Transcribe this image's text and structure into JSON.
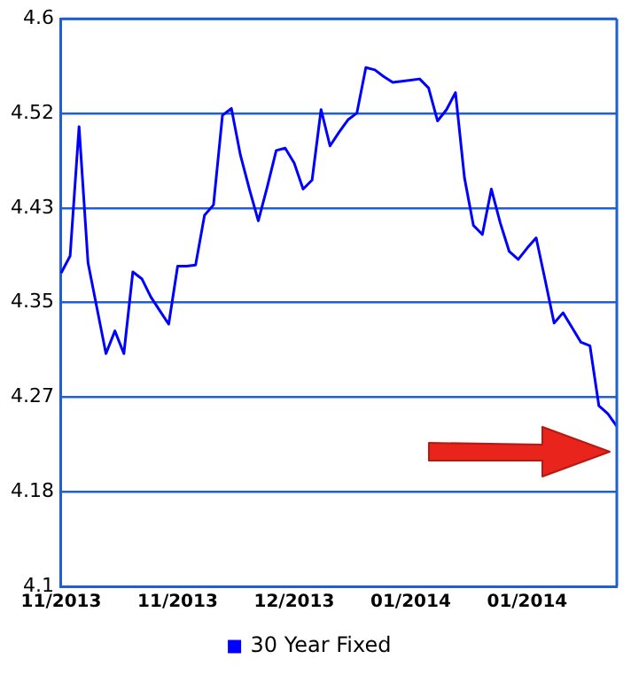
{
  "chart_data": {
    "type": "line",
    "categories": [
      "11/2013",
      null,
      null,
      null,
      null,
      null,
      null,
      null,
      null,
      null,
      null,
      null,
      null,
      "11/2013",
      null,
      null,
      null,
      null,
      null,
      null,
      null,
      null,
      null,
      null,
      null,
      null,
      "12/2013",
      null,
      null,
      null,
      null,
      null,
      null,
      null,
      null,
      null,
      null,
      null,
      null,
      "01/2014",
      null,
      null,
      null,
      null,
      null,
      null,
      null,
      null,
      null,
      null,
      null,
      null,
      "01/2014",
      null,
      null,
      null,
      null,
      null,
      null,
      null,
      null,
      null,
      null
    ],
    "series": [
      {
        "name": "30 Year Fixed",
        "color": "#0000ff",
        "values": [
          4.376,
          4.391,
          4.505,
          4.385,
          4.345,
          4.305,
          4.325,
          4.305,
          4.377,
          4.371,
          4.355,
          4.343,
          4.331,
          4.382,
          4.382,
          4.383,
          4.427,
          4.436,
          4.515,
          4.521,
          4.48,
          4.45,
          4.422,
          4.452,
          4.484,
          4.486,
          4.473,
          4.45,
          4.458,
          4.52,
          4.488,
          4.5,
          4.511,
          4.517,
          4.557,
          4.555,
          4.549,
          4.544,
          4.545,
          4.546,
          4.547,
          4.539,
          4.51,
          4.52,
          4.535,
          4.46,
          4.418,
          4.41,
          4.45,
          4.42,
          4.395,
          4.388,
          4.398,
          4.407,
          4.37,
          4.332,
          4.341,
          4.328,
          4.315,
          4.312,
          4.259,
          4.252,
          4.241
        ]
      }
    ],
    "ylim": [
      4.1,
      4.6
    ],
    "yticks": [
      {
        "value": 4.1,
        "label": "4.1"
      },
      {
        "value": 4.18333,
        "label": "4.18"
      },
      {
        "value": 4.26667,
        "label": "4.27"
      },
      {
        "value": 4.35,
        "label": "4.35"
      },
      {
        "value": 4.43333,
        "label": "4.43"
      },
      {
        "value": 4.51667,
        "label": "4.52"
      },
      {
        "value": 4.6,
        "label": "4.6"
      }
    ],
    "grid": "y",
    "legend": "bottom",
    "marker": "none",
    "line_style": "solid"
  }
}
